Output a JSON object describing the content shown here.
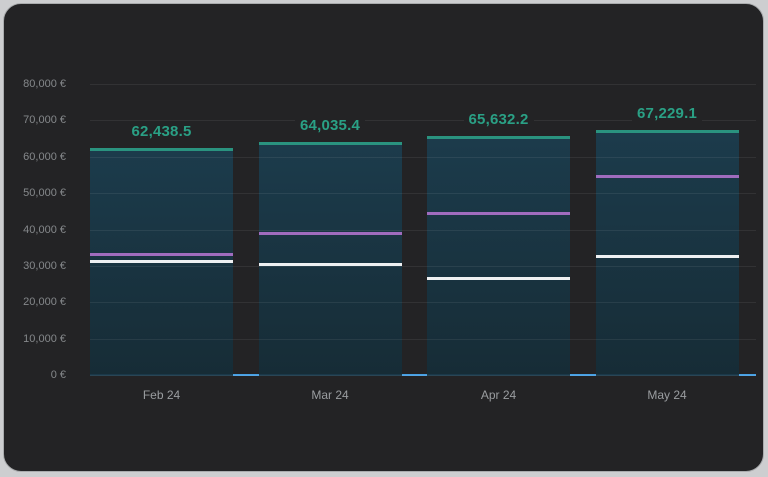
{
  "panel": {
    "background": "#232325",
    "outer_background": "#cdced0"
  },
  "chart_data": {
    "type": "bar",
    "title": "",
    "xlabel": "",
    "ylabel": "",
    "legend": false,
    "grid": true,
    "categories": [
      "Feb 24",
      "Mar 24",
      "Apr 24",
      "May 24"
    ],
    "series": [
      {
        "name": "total-bar",
        "style": "bar-with-top-line",
        "color": "#2a937f",
        "label_color": "#2aa085",
        "values": [
          62438.5,
          64035.4,
          65632.2,
          67229.1
        ],
        "labels": [
          "62,438.5",
          "64,035.4",
          "65,632.2",
          "67,229.1"
        ]
      },
      {
        "name": "marker-purple",
        "style": "marker-line",
        "color": "#a06cbe",
        "values": [
          33200,
          39000,
          44300,
          54600
        ]
      },
      {
        "name": "marker-white",
        "style": "marker-line",
        "color": "#eef0f2",
        "values": [
          31200,
          30300,
          26400,
          32500
        ]
      },
      {
        "name": "baseline",
        "style": "axis-line",
        "color": "#47a0e4",
        "values": [
          0,
          0,
          0,
          0
        ]
      }
    ],
    "y_axis": {
      "min": 0,
      "max": 80000,
      "ticks": [
        0,
        10000,
        20000,
        30000,
        40000,
        50000,
        60000,
        70000,
        80000
      ],
      "tick_labels": [
        "0 €",
        "10,000 €",
        "20,000 €",
        "30,000 €",
        "40,000 €",
        "50,000 €",
        "60,000 €",
        "70,000 €",
        "80,000 €"
      ],
      "currency": "€"
    }
  }
}
